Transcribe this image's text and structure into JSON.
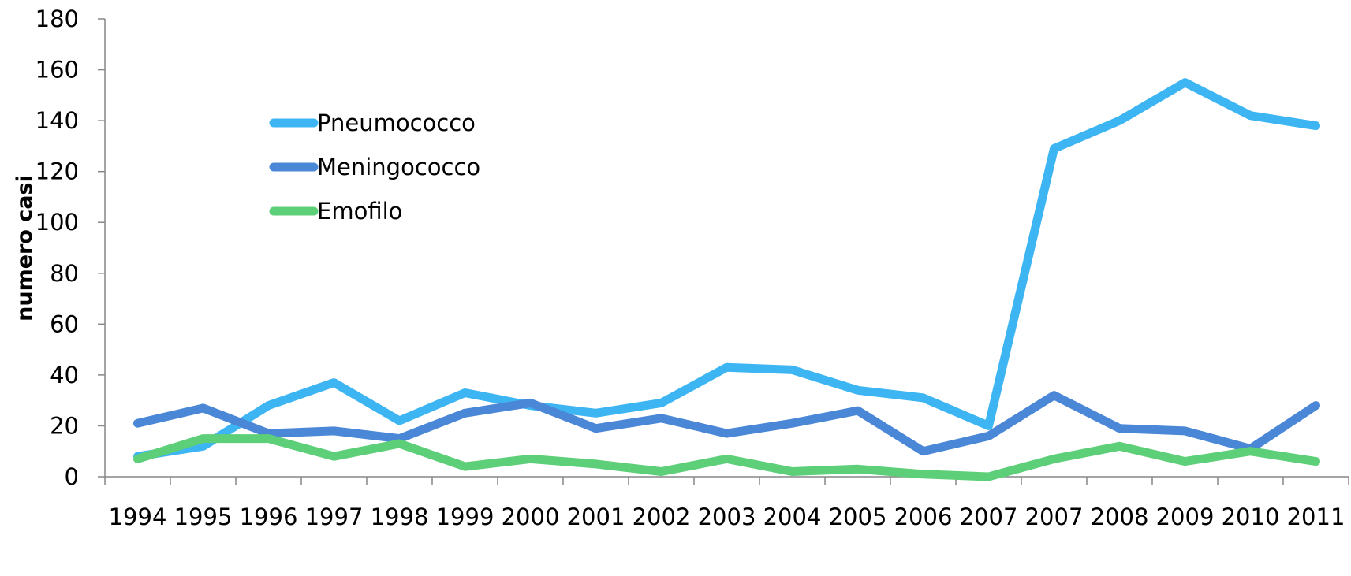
{
  "chart_data": {
    "type": "line",
    "title": "",
    "xlabel": "",
    "ylabel": "numero casi",
    "ylim": [
      0,
      180
    ],
    "yticks": [
      0,
      20,
      40,
      60,
      80,
      100,
      120,
      140,
      160,
      180
    ],
    "grid": false,
    "legend_position": "upper-left inside plot",
    "categories": [
      "1994",
      "1995",
      "1996",
      "1997",
      "1998",
      "1999",
      "2000",
      "2001",
      "2002",
      "2003",
      "2004",
      "2005",
      "2006",
      "2007",
      "2007",
      "2008",
      "2009",
      "2010",
      "2011"
    ],
    "series": [
      {
        "name": "Pneumococco",
        "color": "#3db5f3",
        "values": [
          8,
          12,
          28,
          37,
          22,
          33,
          28,
          25,
          29,
          43,
          42,
          34,
          31,
          20,
          129,
          140,
          155,
          142,
          138
        ]
      },
      {
        "name": "Meningococco",
        "color": "#4a87d6",
        "values": [
          21,
          27,
          17,
          18,
          15,
          25,
          29,
          19,
          23,
          17,
          21,
          26,
          10,
          16,
          32,
          19,
          18,
          11,
          28
        ]
      },
      {
        "name": "Emofilo",
        "color": "#5dcf79",
        "values": [
          7,
          15,
          15,
          8,
          13,
          4,
          7,
          5,
          2,
          7,
          2,
          3,
          1,
          0,
          7,
          12,
          6,
          10,
          6
        ]
      }
    ]
  }
}
